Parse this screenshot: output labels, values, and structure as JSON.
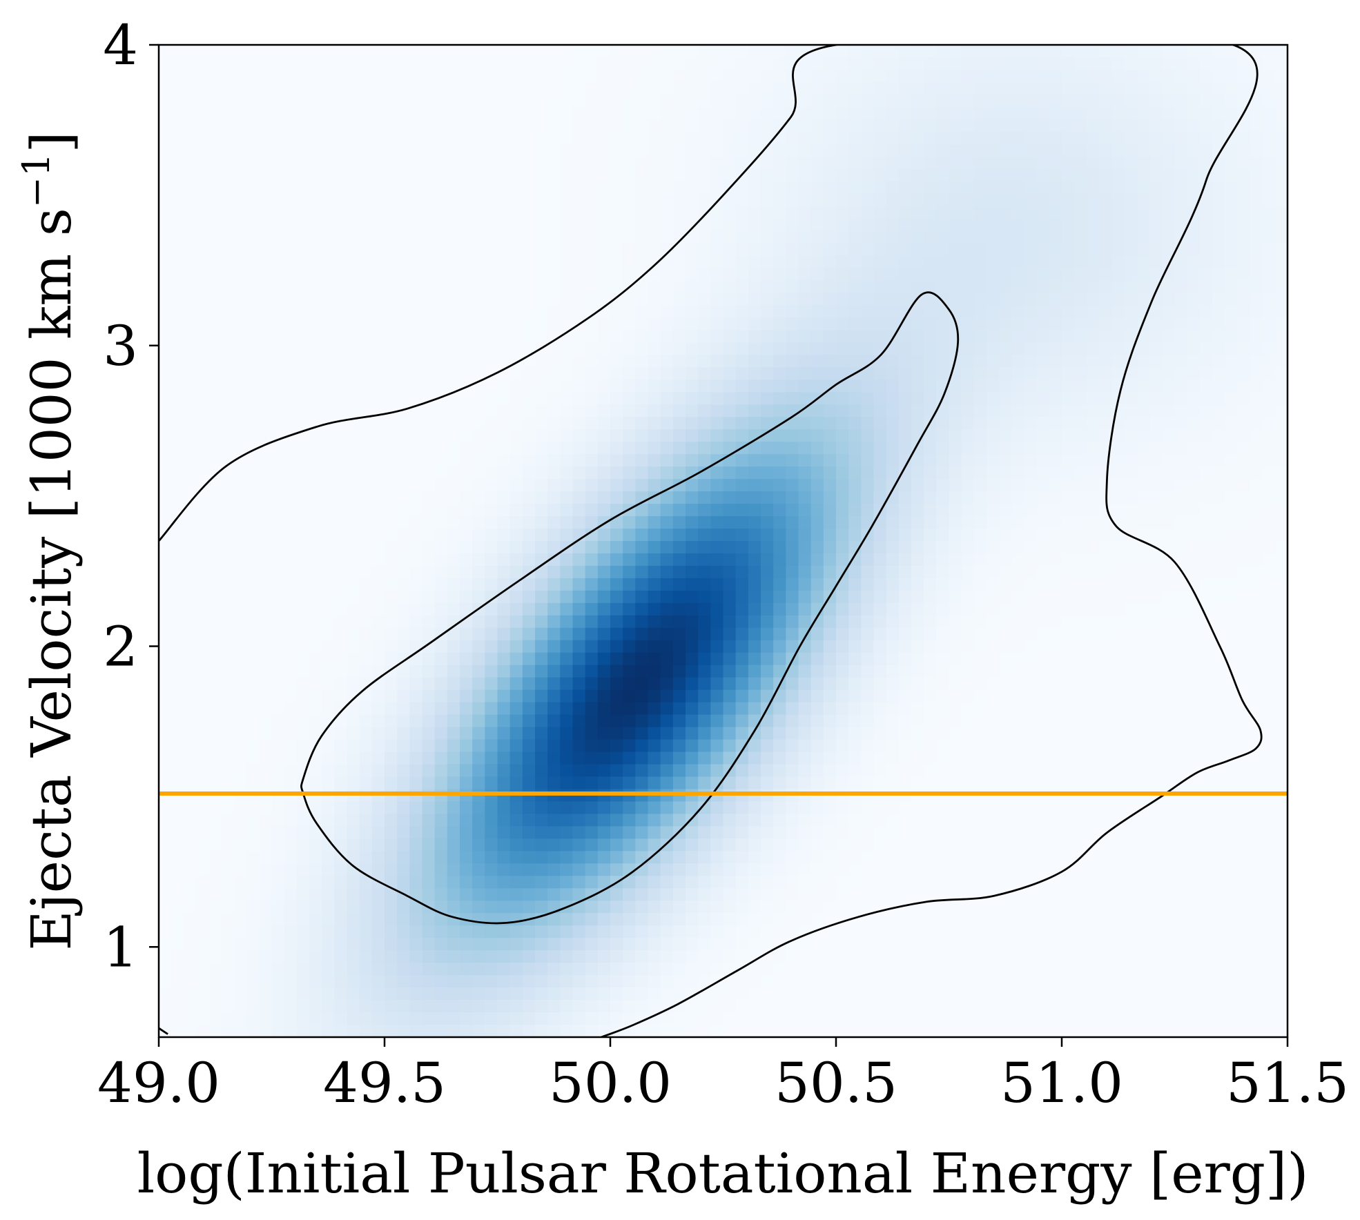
{
  "chart_data": {
    "type": "heatmap",
    "subtype": "2d-density-with-contours",
    "xlabel": "log(Initial Pulsar Rotational Energy [erg])",
    "ylabel": "Ejecta Velocity [1000 km s⁻¹]",
    "ylabel_main": "Ejecta Velocity [1000 km s",
    "ylabel_sup": "−1",
    "ylabel_close": "]",
    "xlim": [
      49.0,
      51.5
    ],
    "ylim": [
      0.7,
      4.0
    ],
    "xticks": [
      49.0,
      49.5,
      50.0,
      50.5,
      51.0,
      51.5
    ],
    "xtick_labels": [
      "49.0",
      "49.5",
      "50.0",
      "50.5",
      "51.0",
      "51.5"
    ],
    "yticks": [
      1,
      2,
      3,
      4
    ],
    "ytick_labels": [
      "1",
      "2",
      "3",
      "4"
    ],
    "colormap": "Blues",
    "density_peak": {
      "x": 50.06,
      "y": 1.87
    },
    "reference_line": {
      "y": 1.51,
      "color": "#FFA500"
    },
    "inner_contour": [
      [
        49.32,
        1.56
      ],
      [
        49.36,
        1.7
      ],
      [
        49.45,
        1.85
      ],
      [
        49.6,
        2.01
      ],
      [
        49.8,
        2.22
      ],
      [
        50.0,
        2.42
      ],
      [
        50.2,
        2.58
      ],
      [
        50.4,
        2.76
      ],
      [
        50.5,
        2.87
      ],
      [
        50.6,
        2.97
      ],
      [
        50.69,
        3.17
      ],
      [
        50.75,
        3.12
      ],
      [
        50.77,
        3.01
      ],
      [
        50.74,
        2.84
      ],
      [
        50.68,
        2.67
      ],
      [
        50.58,
        2.4
      ],
      [
        50.5,
        2.2
      ],
      [
        50.42,
        2.0
      ],
      [
        50.32,
        1.72
      ],
      [
        50.2,
        1.46
      ],
      [
        50.05,
        1.25
      ],
      [
        49.9,
        1.13
      ],
      [
        49.77,
        1.08
      ],
      [
        49.65,
        1.1
      ],
      [
        49.55,
        1.17
      ],
      [
        49.43,
        1.27
      ],
      [
        49.35,
        1.41
      ],
      [
        49.32,
        1.51
      ]
    ],
    "outer_contour": [
      [
        49.0,
        2.35
      ],
      [
        49.15,
        2.6
      ],
      [
        49.35,
        2.73
      ],
      [
        49.55,
        2.79
      ],
      [
        49.75,
        2.91
      ],
      [
        49.95,
        3.09
      ],
      [
        50.1,
        3.27
      ],
      [
        50.25,
        3.5
      ],
      [
        50.4,
        3.76
      ],
      [
        50.5,
        4.0
      ],
      [
        51.38,
        4.0
      ],
      [
        51.32,
        3.55
      ],
      [
        51.2,
        3.15
      ],
      [
        51.13,
        2.85
      ],
      [
        51.1,
        2.55
      ],
      [
        51.12,
        2.4
      ],
      [
        51.25,
        2.28
      ],
      [
        51.35,
        2.0
      ],
      [
        51.4,
        1.82
      ],
      [
        51.44,
        1.72
      ],
      [
        51.43,
        1.66
      ],
      [
        51.37,
        1.62
      ],
      [
        51.3,
        1.58
      ],
      [
        51.22,
        1.5
      ],
      [
        51.1,
        1.38
      ],
      [
        51.0,
        1.25
      ],
      [
        50.85,
        1.17
      ],
      [
        50.7,
        1.15
      ],
      [
        50.55,
        1.1
      ],
      [
        50.4,
        1.02
      ],
      [
        50.28,
        0.92
      ],
      [
        50.15,
        0.81
      ],
      [
        50.05,
        0.74
      ],
      [
        49.98,
        0.7
      ]
    ],
    "outer_contour_corner": [
      [
        49.0,
        0.73
      ],
      [
        49.02,
        0.71
      ]
    ],
    "colors": {
      "line": "#000000",
      "reference": "#FFA500",
      "axes": "#000000"
    }
  }
}
